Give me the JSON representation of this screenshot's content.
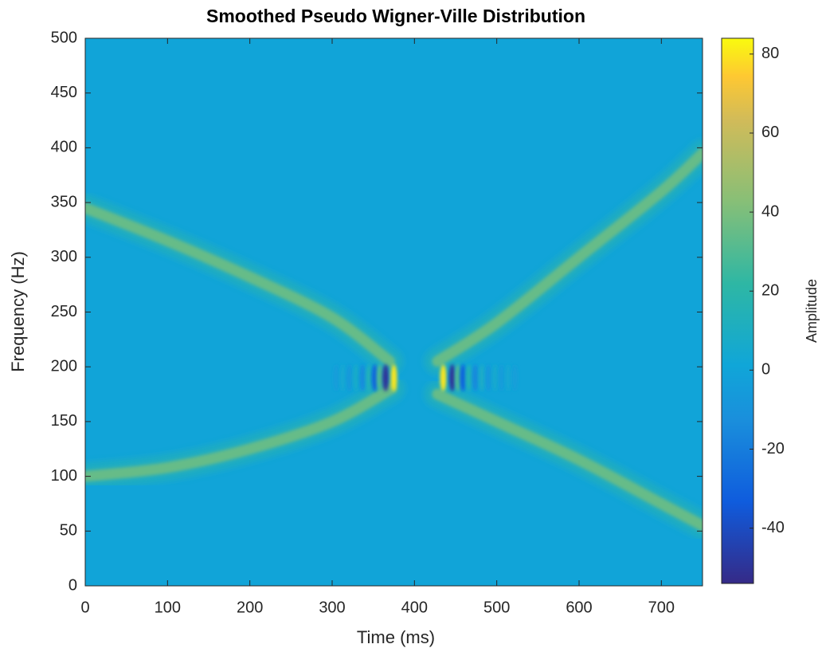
{
  "chart_data": {
    "type": "tfr",
    "title": "Smoothed Pseudo Wigner-Ville Distribution",
    "x_label": "Time (ms)",
    "y_label": "Frequency (Hz)",
    "colorbar_label": "Amplitude",
    "colormap": "parula",
    "xlim": [
      0,
      750
    ],
    "xticks": [
      0,
      100,
      200,
      300,
      400,
      500,
      600,
      700
    ],
    "ylim": [
      0,
      500
    ],
    "yticks": [
      0,
      50,
      100,
      150,
      200,
      250,
      300,
      350,
      400,
      450,
      500
    ],
    "clim": [
      -54,
      84
    ],
    "cticks": [
      -40,
      -20,
      0,
      20,
      40,
      60,
      80
    ],
    "background_value": 0,
    "grid": false,
    "series": [
      {
        "amplitude": 35,
        "x": [
          0,
          100,
          200,
          300,
          370
        ],
        "values": [
          345,
          315,
          282,
          245,
          205
        ]
      },
      {
        "amplitude": 35,
        "x": [
          0,
          100,
          200,
          300,
          372
        ],
        "values": [
          100,
          108,
          125,
          150,
          180
        ]
      },
      {
        "amplitude": 35,
        "x": [
          428,
          500,
          600,
          700,
          750
        ],
        "values": [
          205,
          240,
          300,
          360,
          395
        ]
      },
      {
        "amplitude": 35,
        "x": [
          428,
          500,
          600,
          700,
          750
        ],
        "values": [
          175,
          150,
          115,
          75,
          55
        ]
      }
    ],
    "interference": {
      "frequency": 190,
      "x": [
        305,
        313,
        321,
        329,
        337,
        345,
        352,
        358,
        365,
        375,
        435,
        446,
        453,
        459,
        466,
        474,
        482,
        490,
        498,
        506,
        514,
        522
      ],
      "values": [
        -4,
        4,
        -7,
        7,
        -14,
        14,
        -30,
        30,
        -50,
        80,
        80,
        -50,
        30,
        -30,
        15,
        -15,
        8,
        -8,
        5,
        -5,
        3,
        -3
      ]
    }
  }
}
